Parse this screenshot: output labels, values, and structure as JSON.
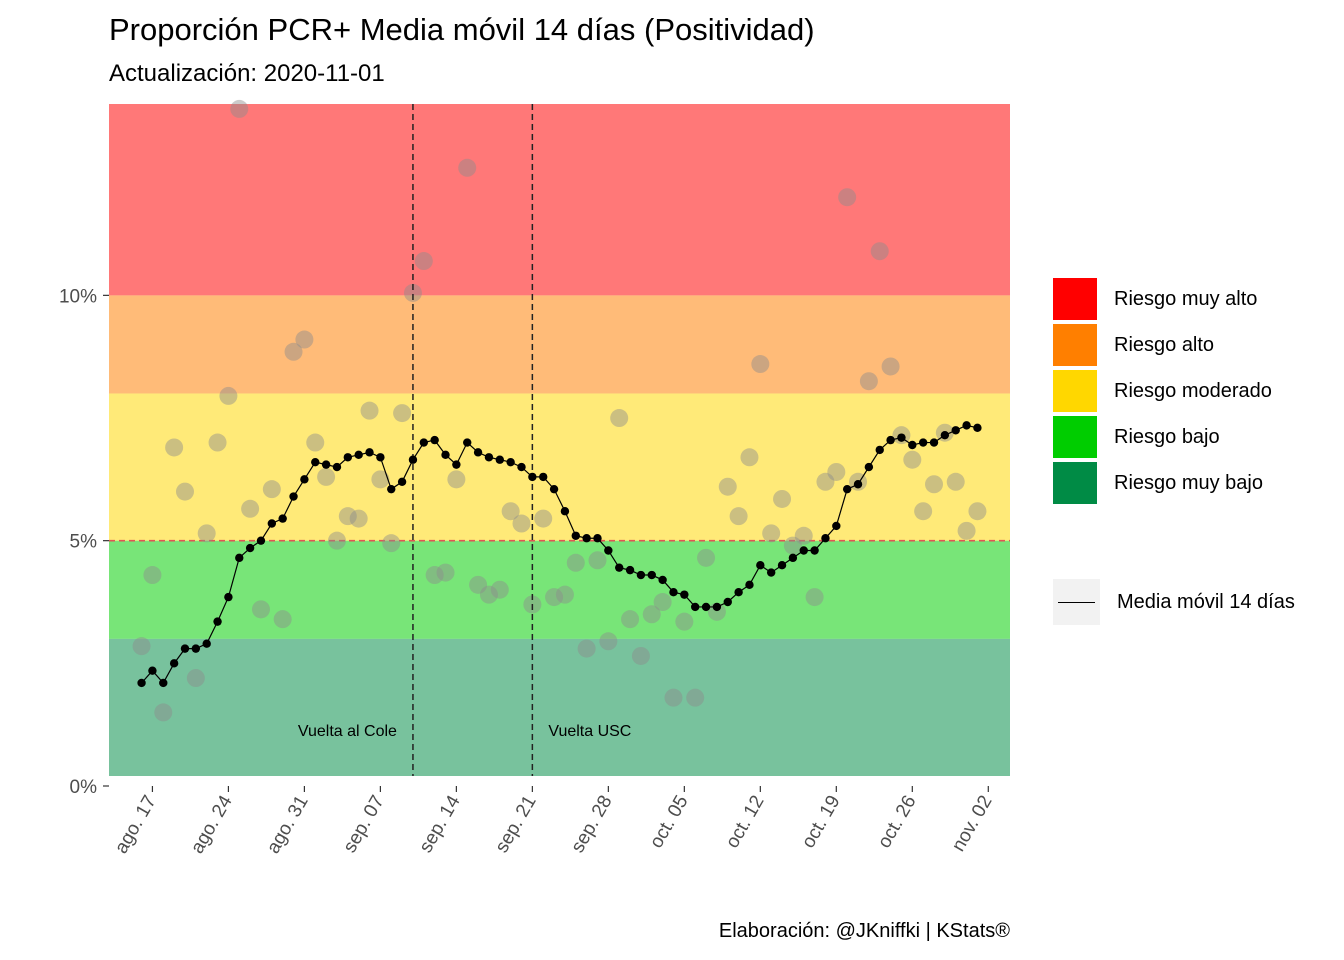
{
  "title": "Proporción PCR+ Media móvil 14 días (Positividad)",
  "subtitle": "Actualización: 2020-11-01",
  "caption": "Elaboración: @JKniffki | KStats®",
  "legend": {
    "zones": [
      {
        "label": "Riesgo muy alto",
        "color": "#ff0000"
      },
      {
        "label": "Riesgo alto",
        "color": "#ff7f00"
      },
      {
        "label": "Riesgo moderado",
        "color": "#ffd700"
      },
      {
        "label": "Riesgo bajo",
        "color": "#00cd00"
      },
      {
        "label": "Riesgo muy bajo",
        "color": "#008b45"
      }
    ],
    "line_label": "Media móvil 14 días"
  },
  "chart_data": {
    "type": "line",
    "x_domain": [
      "2020-08-13",
      "2020-11-04"
    ],
    "y_range": [
      0,
      13.9
    ],
    "y_ticks": [
      {
        "value": 0,
        "label": "0%"
      },
      {
        "value": 5,
        "label": "5%"
      },
      {
        "value": 10,
        "label": "10%"
      }
    ],
    "x_ticks": [
      {
        "date": "2020-08-17",
        "label": "ago. 17"
      },
      {
        "date": "2020-08-24",
        "label": "ago. 24"
      },
      {
        "date": "2020-08-31",
        "label": "ago. 31"
      },
      {
        "date": "2020-09-07",
        "label": "sep. 07"
      },
      {
        "date": "2020-09-14",
        "label": "sep. 14"
      },
      {
        "date": "2020-09-21",
        "label": "sep. 21"
      },
      {
        "date": "2020-09-28",
        "label": "sep. 28"
      },
      {
        "date": "2020-10-05",
        "label": "oct. 05"
      },
      {
        "date": "2020-10-12",
        "label": "oct. 12"
      },
      {
        "date": "2020-10-19",
        "label": "oct. 19"
      },
      {
        "date": "2020-10-26",
        "label": "oct. 26"
      },
      {
        "date": "2020-11-02",
        "label": "nov. 02"
      }
    ],
    "zones": [
      {
        "label": "Riesgo muy bajo",
        "from": 0,
        "to": 3,
        "color": "#008b45"
      },
      {
        "label": "Riesgo bajo",
        "from": 3,
        "to": 5,
        "color": "#00cd00"
      },
      {
        "label": "Riesgo moderado",
        "from": 5,
        "to": 8,
        "color": "#ffd700"
      },
      {
        "label": "Riesgo alto",
        "from": 8,
        "to": 10,
        "color": "#ff7f00"
      },
      {
        "label": "Riesgo muy alto",
        "from": 10,
        "to": 13.9,
        "color": "#ff0000"
      }
    ],
    "threshold": 5,
    "vlines": [
      {
        "date": "2020-09-10",
        "label": "Vuelta al Cole",
        "label_side": "left"
      },
      {
        "date": "2020-09-21",
        "label": "Vuelta USC",
        "label_side": "right"
      }
    ],
    "daily": {
      "start": "2020-08-16",
      "values": [
        2.85,
        4.3,
        1.5,
        6.9,
        6.0,
        2.2,
        5.15,
        7.0,
        7.95,
        13.8,
        5.65,
        3.6,
        6.05,
        3.4,
        8.85,
        9.1,
        7.0,
        6.3,
        5.0,
        5.5,
        5.45,
        7.65,
        6.25,
        4.95,
        7.6,
        10.05,
        10.7,
        4.3,
        4.35,
        6.25,
        12.6,
        4.1,
        3.9,
        4.0,
        5.6,
        5.35,
        3.7,
        5.45,
        3.85,
        3.9,
        4.55,
        2.8,
        4.6,
        2.95,
        7.5,
        3.4,
        2.65,
        3.5,
        3.75,
        1.8,
        3.35,
        1.8,
        4.65,
        3.55,
        6.1,
        5.5,
        6.7,
        8.6,
        5.15,
        5.85,
        4.9,
        5.1,
        3.85,
        6.2,
        6.4,
        12.0,
        6.2,
        8.25,
        10.9,
        8.55,
        7.15,
        6.65,
        5.6,
        6.15,
        7.2,
        6.2,
        5.2,
        5.6
      ]
    },
    "moving_average": {
      "start": "2020-08-16",
      "values": [
        2.1,
        2.35,
        2.1,
        2.5,
        2.8,
        2.8,
        2.9,
        3.35,
        3.85,
        4.65,
        4.85,
        5.0,
        5.35,
        5.45,
        5.9,
        6.25,
        6.6,
        6.55,
        6.5,
        6.7,
        6.75,
        6.8,
        6.7,
        6.05,
        6.2,
        6.65,
        7.0,
        7.05,
        6.75,
        6.55,
        7.0,
        6.8,
        6.7,
        6.65,
        6.6,
        6.5,
        6.3,
        6.3,
        6.05,
        5.6,
        5.1,
        5.05,
        5.05,
        4.8,
        4.45,
        4.4,
        4.3,
        4.3,
        4.2,
        3.95,
        3.9,
        3.65,
        3.65,
        3.65,
        3.75,
        3.95,
        4.1,
        4.5,
        4.35,
        4.5,
        4.65,
        4.8,
        4.8,
        5.05,
        5.3,
        6.05,
        6.15,
        6.5,
        6.85,
        7.05,
        7.1,
        6.95,
        7.0,
        7.0,
        7.15,
        7.25,
        7.35,
        7.3
      ]
    }
  }
}
